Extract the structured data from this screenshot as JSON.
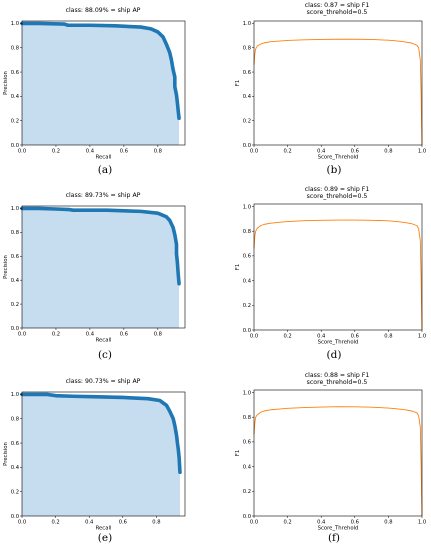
{
  "chart_data": [
    {
      "type": "area",
      "caption": "(a)",
      "title": "class: 88.09% = ship AP",
      "xlabel": "Recall",
      "ylabel": "Precision",
      "xlim": [
        0,
        0.96
      ],
      "ylim": [
        0,
        1.02
      ],
      "xticks": [
        "0.0",
        "0.2",
        "0.4",
        "0.6",
        "0.8"
      ],
      "yticks": [
        "0.0",
        "0.2",
        "0.4",
        "0.6",
        "0.8",
        "1.0"
      ],
      "grid": false,
      "series": [
        {
          "x": [
            0.0,
            0.1,
            0.25,
            0.27,
            0.4,
            0.55,
            0.7,
            0.76,
            0.8,
            0.83,
            0.85,
            0.87,
            0.88,
            0.89,
            0.9,
            0.9,
            0.91,
            0.915,
            0.92,
            0.925
          ],
          "y": [
            1.0,
            1.0,
            0.995,
            0.985,
            0.985,
            0.98,
            0.97,
            0.955,
            0.93,
            0.89,
            0.83,
            0.76,
            0.7,
            0.62,
            0.56,
            0.48,
            0.41,
            0.35,
            0.28,
            0.22
          ]
        }
      ]
    },
    {
      "type": "line",
      "caption": "(b)",
      "title": "class: 0.87 = ship F1",
      "subtitle": "score_threhold=0.5",
      "xlabel": "Score_Threhold",
      "ylabel": "F1",
      "xlim": [
        0,
        1
      ],
      "ylim": [
        0,
        1.02
      ],
      "xticks": [
        "0.0",
        "0.2",
        "0.4",
        "0.6",
        "0.8",
        "1.0"
      ],
      "yticks": [
        "0.0",
        "0.2",
        "0.4",
        "0.6",
        "0.8",
        "1.0"
      ],
      "grid": false,
      "series": [
        {
          "x": [
            0.0,
            0.003,
            0.006,
            0.01,
            0.02,
            0.04,
            0.06,
            0.1,
            0.15,
            0.2,
            0.3,
            0.4,
            0.5,
            0.6,
            0.7,
            0.8,
            0.85,
            0.9,
            0.94,
            0.97,
            0.98,
            0.99,
            0.995,
            1.0
          ],
          "y": [
            0.66,
            0.72,
            0.76,
            0.79,
            0.815,
            0.83,
            0.84,
            0.85,
            0.855,
            0.86,
            0.865,
            0.868,
            0.87,
            0.87,
            0.868,
            0.862,
            0.856,
            0.848,
            0.838,
            0.82,
            0.8,
            0.7,
            0.4,
            0.0
          ]
        }
      ]
    },
    {
      "type": "area",
      "caption": "(c)",
      "title": "class: 89.73% = ship AP",
      "xlabel": "Recall",
      "ylabel": "Precision",
      "xlim": [
        0,
        0.96
      ],
      "ylim": [
        0,
        1.02
      ],
      "xticks": [
        "0.0",
        "0.2",
        "0.4",
        "0.6",
        "0.8"
      ],
      "yticks": [
        "0.0",
        "0.2",
        "0.4",
        "0.6",
        "0.8",
        "1.0"
      ],
      "grid": false,
      "series": [
        {
          "x": [
            0.0,
            0.1,
            0.2,
            0.28,
            0.3,
            0.5,
            0.7,
            0.8,
            0.85,
            0.87,
            0.89,
            0.9,
            0.91,
            0.91,
            0.915,
            0.92,
            0.925
          ],
          "y": [
            1.0,
            1.0,
            0.995,
            0.99,
            0.985,
            0.985,
            0.975,
            0.96,
            0.93,
            0.9,
            0.84,
            0.78,
            0.7,
            0.62,
            0.55,
            0.45,
            0.37
          ]
        }
      ]
    },
    {
      "type": "line",
      "caption": "(d)",
      "title": "class: 0.89 = ship F1",
      "subtitle": "score_threhold=0.5",
      "xlabel": "Score_Threhold",
      "ylabel": "F1",
      "xlim": [
        0,
        1
      ],
      "ylim": [
        0,
        1.02
      ],
      "xticks": [
        "0.0",
        "0.2",
        "0.4",
        "0.6",
        "0.8",
        "1.0"
      ],
      "yticks": [
        "0.0",
        "0.2",
        "0.4",
        "0.6",
        "0.8",
        "1.0"
      ],
      "grid": false,
      "series": [
        {
          "x": [
            0.0,
            0.003,
            0.006,
            0.01,
            0.02,
            0.04,
            0.06,
            0.1,
            0.15,
            0.2,
            0.3,
            0.4,
            0.5,
            0.6,
            0.7,
            0.8,
            0.85,
            0.9,
            0.94,
            0.97,
            0.98,
            0.99,
            0.995,
            1.0
          ],
          "y": [
            0.66,
            0.73,
            0.77,
            0.8,
            0.825,
            0.845,
            0.855,
            0.865,
            0.872,
            0.878,
            0.885,
            0.888,
            0.89,
            0.89,
            0.888,
            0.884,
            0.878,
            0.87,
            0.86,
            0.845,
            0.82,
            0.72,
            0.4,
            0.0
          ]
        }
      ]
    },
    {
      "type": "area",
      "caption": "(e)",
      "title": "class: 90.73% = ship AP",
      "xlabel": "Recall",
      "ylabel": "Precision",
      "xlim": [
        0,
        0.97
      ],
      "ylim": [
        0,
        1.02
      ],
      "xticks": [
        "0.0",
        "0.2",
        "0.4",
        "0.6",
        "0.8"
      ],
      "yticks": [
        "0.0",
        "0.2",
        "0.4",
        "0.6",
        "0.8",
        "1.0"
      ],
      "grid": false,
      "series": [
        {
          "x": [
            0.0,
            0.15,
            0.2,
            0.3,
            0.45,
            0.6,
            0.75,
            0.82,
            0.86,
            0.88,
            0.9,
            0.91,
            0.92,
            0.925,
            0.93,
            0.935,
            0.94
          ],
          "y": [
            1.0,
            1.0,
            0.99,
            0.985,
            0.98,
            0.975,
            0.965,
            0.95,
            0.91,
            0.86,
            0.8,
            0.74,
            0.66,
            0.6,
            0.55,
            0.48,
            0.36
          ]
        }
      ]
    },
    {
      "type": "line",
      "caption": "(f)",
      "title": "class: 0.88 = ship F1",
      "subtitle": "score_threhold=0.5",
      "xlabel": "Score_Threhold",
      "ylabel": "F1",
      "xlim": [
        0,
        1
      ],
      "ylim": [
        0,
        1.02
      ],
      "xticks": [
        "0.0",
        "0.2",
        "0.4",
        "0.6",
        "0.8",
        "1.0"
      ],
      "yticks": [
        "0.0",
        "0.2",
        "0.4",
        "0.6",
        "0.8",
        "1.0"
      ],
      "grid": false,
      "series": [
        {
          "x": [
            0.0,
            0.003,
            0.006,
            0.01,
            0.02,
            0.04,
            0.06,
            0.1,
            0.15,
            0.2,
            0.3,
            0.4,
            0.5,
            0.6,
            0.7,
            0.8,
            0.85,
            0.9,
            0.94,
            0.97,
            0.98,
            0.99,
            0.995,
            1.0
          ],
          "y": [
            0.66,
            0.72,
            0.765,
            0.8,
            0.82,
            0.84,
            0.85,
            0.86,
            0.866,
            0.872,
            0.878,
            0.882,
            0.885,
            0.884,
            0.881,
            0.874,
            0.868,
            0.86,
            0.85,
            0.835,
            0.81,
            0.72,
            0.4,
            0.0
          ]
        }
      ]
    }
  ],
  "colors": {
    "pr_line": "#1f77b4",
    "pr_fill": "#c6dcef",
    "f1_line": "#ff7f0e"
  }
}
